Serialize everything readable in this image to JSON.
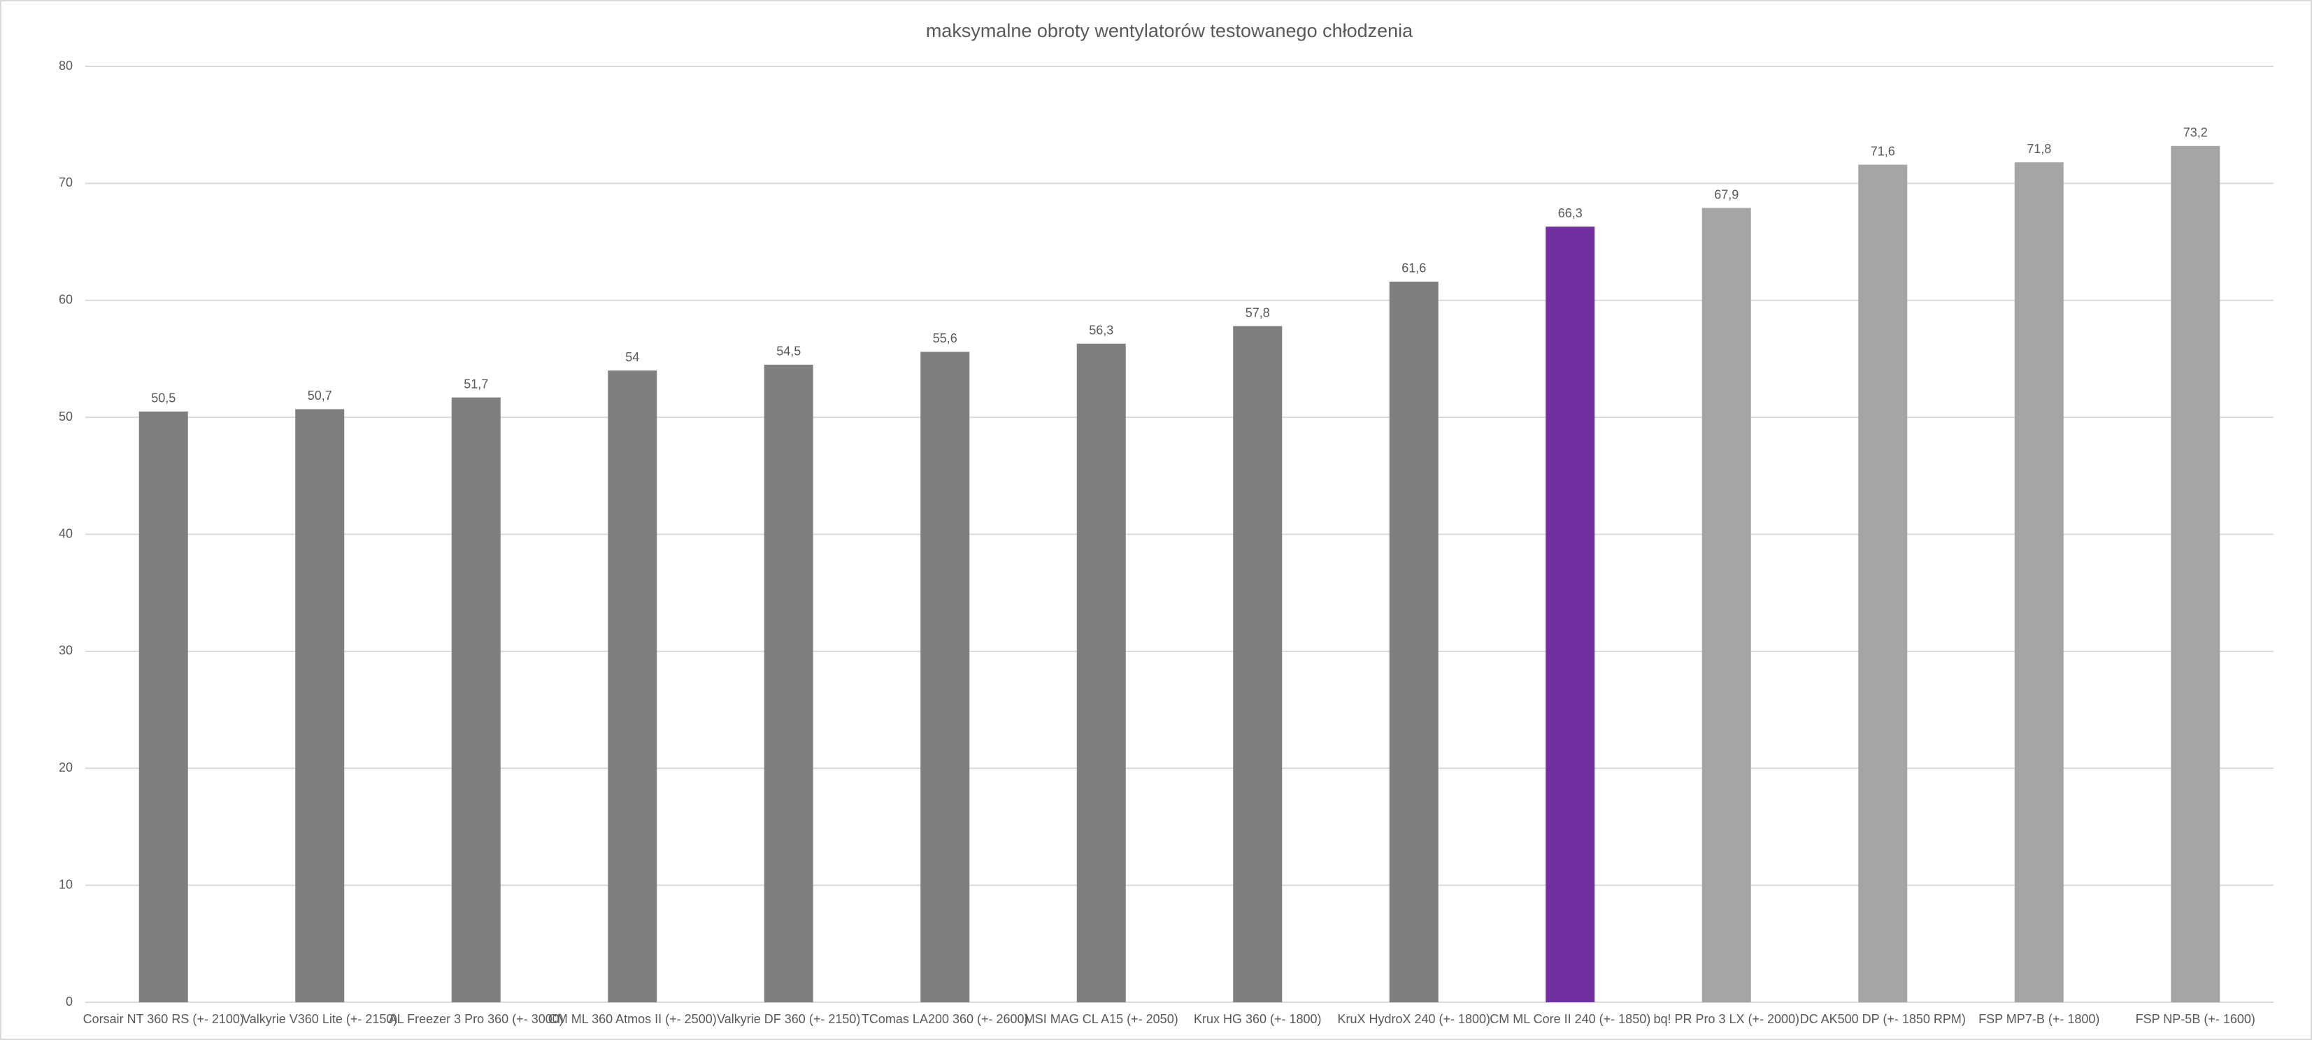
{
  "chart_data": {
    "type": "bar",
    "title": "maksymalne obroty wentylatorów testowanego chłodzenia",
    "categories": [
      "Corsair NT 360 RS (+- 2100)",
      "Valkyrie V360 Lite (+- 2150)",
      "AL Freezer 3 Pro 360 (+- 3000)",
      "CM ML 360 Atmos II (+- 2500)",
      "Valkyrie DF 360 (+- 2150)",
      "TComas LA200 360 (+- 2600)",
      "MSI MAG CL A15 (+- 2050)",
      "Krux HG 360 (+- 1800)",
      "KruX HydroX 240 (+- 1800)",
      "CM ML Core II 240 (+- 1850)",
      "bq! PR Pro 3 LX (+- 2000)",
      "DC AK500 DP (+- 1850 RPM)",
      "FSP MP7-B (+- 1800)",
      "FSP NP-5B (+- 1600)"
    ],
    "values": [
      50.5,
      50.7,
      51.7,
      54,
      54.5,
      55.6,
      56.3,
      57.8,
      61.6,
      66.3,
      67.9,
      71.6,
      71.8,
      73.2
    ],
    "value_labels": [
      "50,5",
      "50,7",
      "51,7",
      "54",
      "54,5",
      "55,6",
      "56,3",
      "57,8",
      "61,6",
      "66,3",
      "67,9",
      "71,6",
      "71,8",
      "73,2"
    ],
    "colors": [
      "#7f7f7f",
      "#7f7f7f",
      "#7f7f7f",
      "#7f7f7f",
      "#7f7f7f",
      "#7f7f7f",
      "#7f7f7f",
      "#7f7f7f",
      "#7f7f7f",
      "#7030a0",
      "#a5a5a5",
      "#a5a5a5",
      "#a5a5a5",
      "#a5a5a5"
    ],
    "ylim": [
      0,
      80
    ],
    "yticks": [
      0,
      10,
      20,
      30,
      40,
      50,
      60,
      70,
      80
    ],
    "grid": true
  }
}
